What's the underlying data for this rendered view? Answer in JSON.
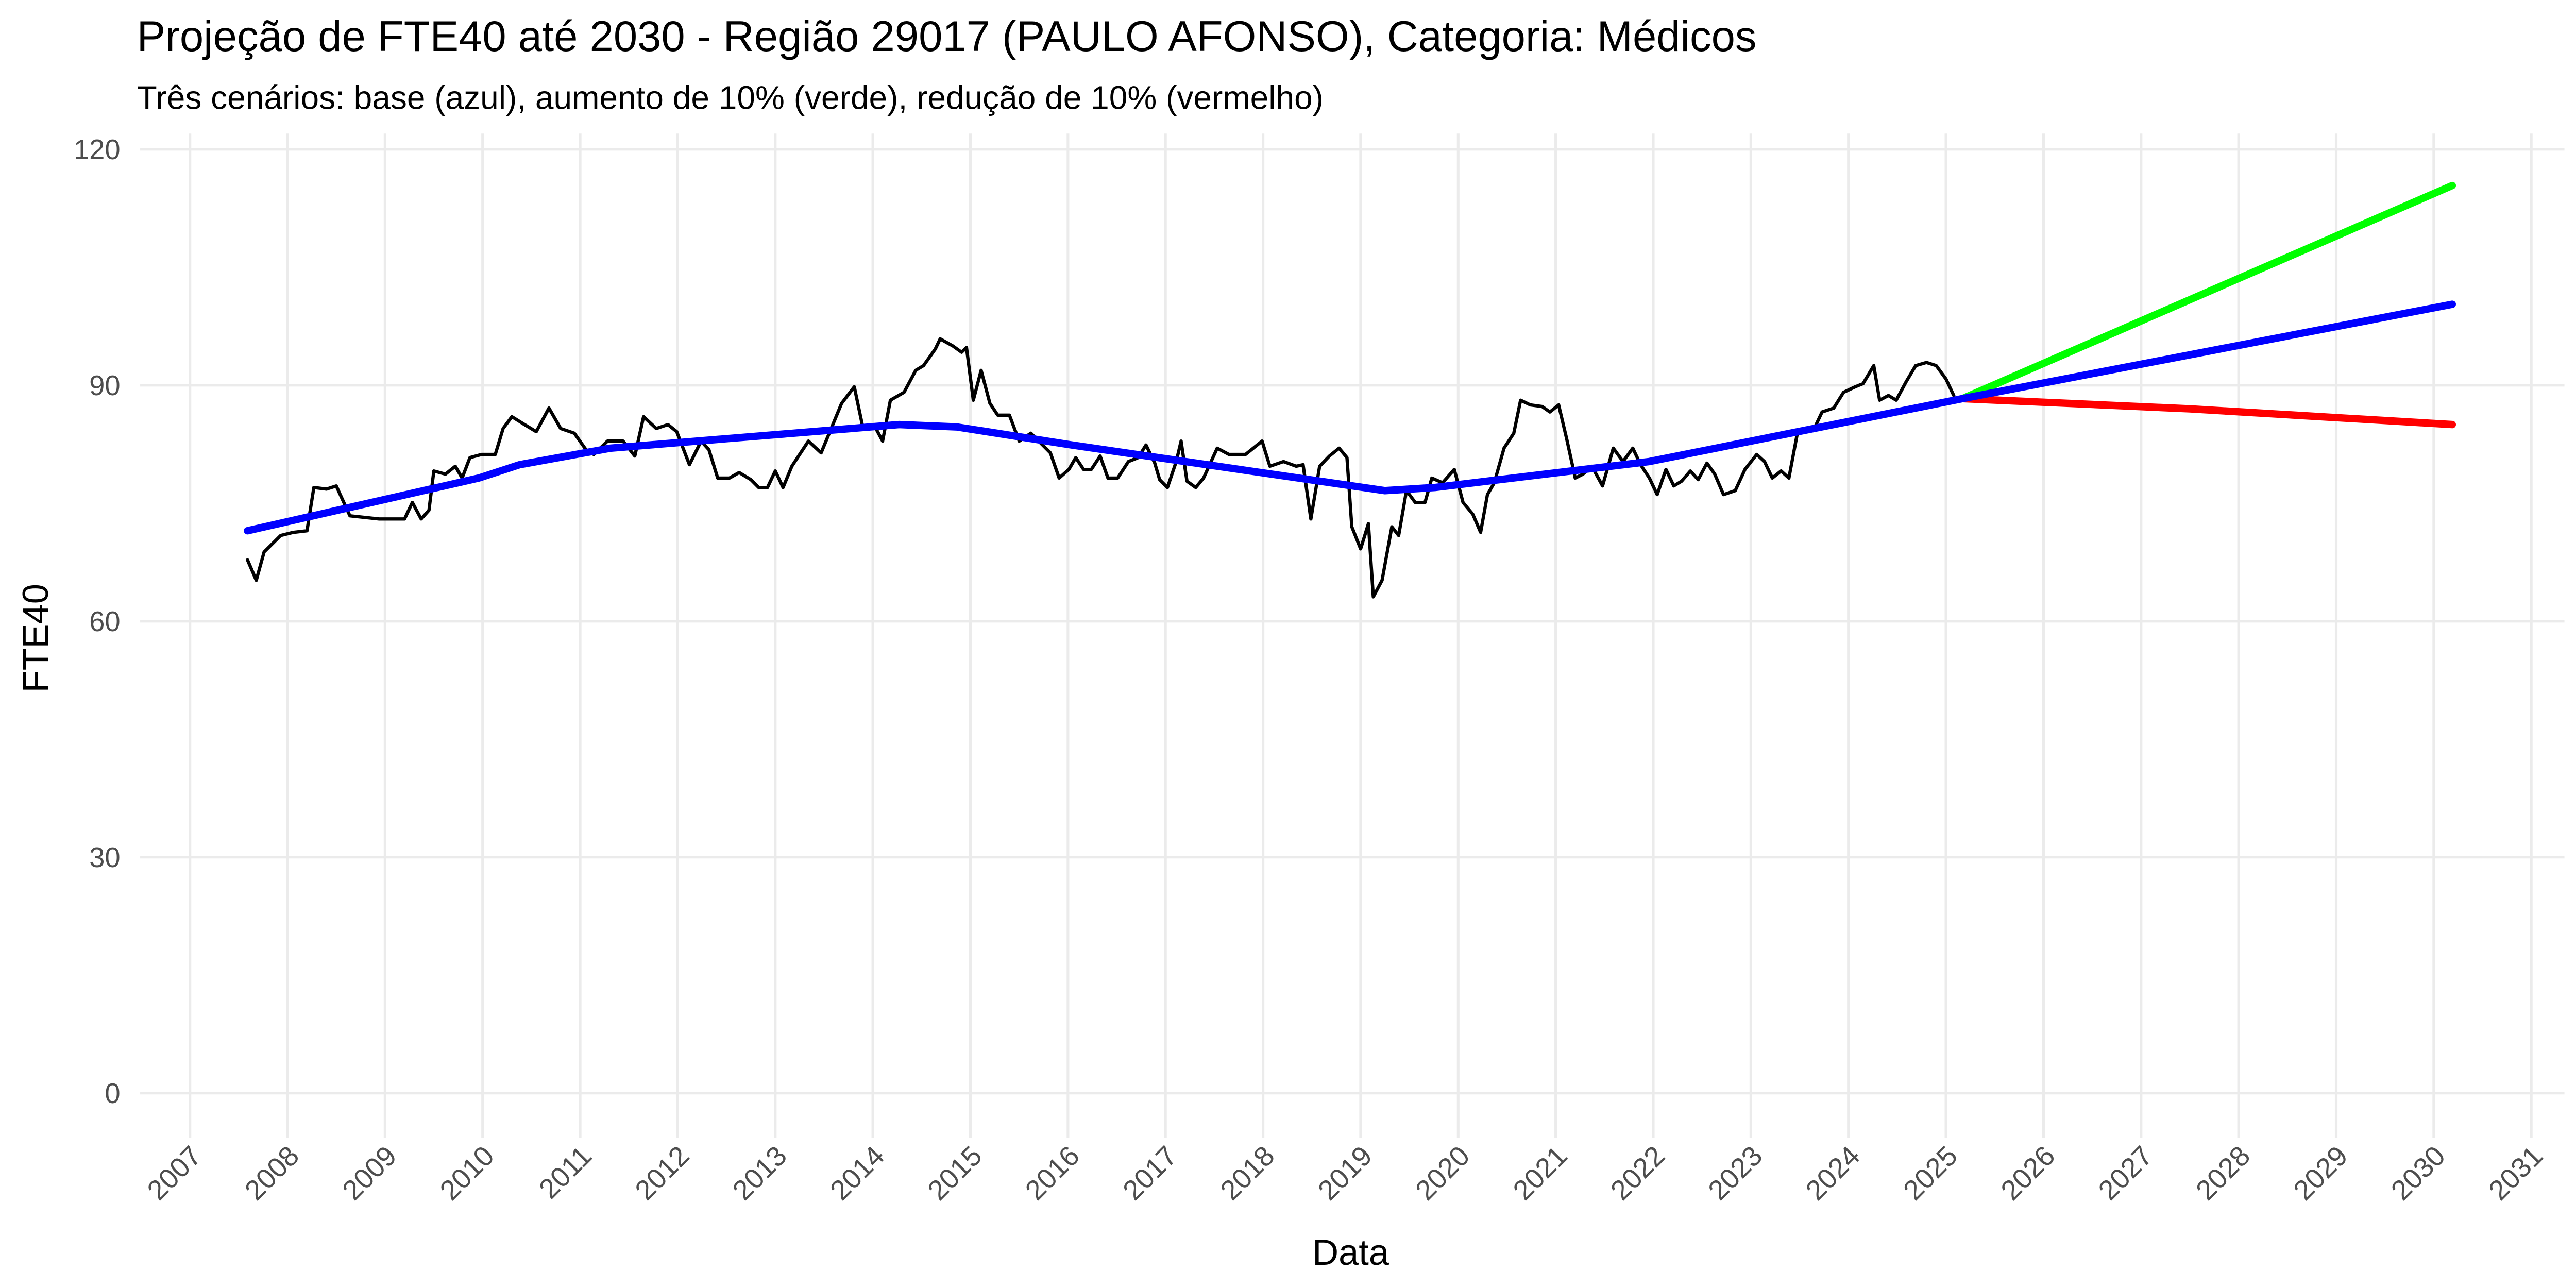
{
  "chart_data": {
    "type": "line",
    "title": "Projeção de FTE40 até 2030 - Região 29017 (PAULO AFONSO), Categoria: Médicos",
    "subtitle": "Três cenários: base (azul), aumento de 10% (verde), redução de 10% (vermelho)",
    "x_label": "Data",
    "y_label": "FTE40",
    "xlim": [
      2006.49,
      2031.34
    ],
    "xticks": [
      2007,
      2008,
      2009,
      2010,
      2011,
      2012,
      2013,
      2014,
      2015,
      2016,
      2017,
      2018,
      2019,
      2020,
      2021,
      2022,
      2023,
      2024,
      2025,
      2026,
      2027,
      2028,
      2029,
      2030,
      2031
    ],
    "ylim": [
      -5.7,
      122
    ],
    "yticks": [
      0,
      30,
      60,
      90,
      120
    ],
    "grid": true,
    "series": [
      {
        "color": "#000000",
        "x": [
          2007.59,
          2007.68,
          2007.76,
          2007.93,
          2008.06,
          2008.2,
          2008.27,
          2008.4,
          2008.5,
          2008.64,
          2008.94,
          2009.2,
          2009.28,
          2009.37,
          2009.45,
          2009.5,
          2009.62,
          2009.72,
          2009.79,
          2009.87,
          2009.99,
          2010.13,
          2010.21,
          2010.3,
          2010.43,
          2010.55,
          2010.68,
          2010.8,
          2010.94,
          2011.06,
          2011.14,
          2011.28,
          2011.44,
          2011.56,
          2011.65,
          2011.78,
          2011.9,
          2011.99,
          2012.12,
          2012.24,
          2012.32,
          2012.41,
          2012.53,
          2012.63,
          2012.75,
          2012.83,
          2012.92,
          2013.0,
          2013.08,
          2013.17,
          2013.34,
          2013.47,
          2013.59,
          2013.68,
          2013.81,
          2013.9,
          2014.01,
          2014.1,
          2014.18,
          2014.32,
          2014.44,
          2014.52,
          2014.64,
          2014.69,
          2014.82,
          2014.91,
          2014.96,
          2015.03,
          2015.11,
          2015.2,
          2015.28,
          2015.4,
          2015.5,
          2015.62,
          2015.74,
          2015.82,
          2015.91,
          2016.01,
          2016.08,
          2016.16,
          2016.24,
          2016.33,
          2016.41,
          2016.51,
          2016.62,
          2016.72,
          2016.8,
          2016.89,
          2016.94,
          2017.02,
          2017.11,
          2017.16,
          2017.22,
          2017.31,
          2017.39,
          2017.53,
          2017.65,
          2017.82,
          2017.99,
          2018.07,
          2018.21,
          2018.34,
          2018.41,
          2018.49,
          2018.58,
          2018.68,
          2018.78,
          2018.86,
          2018.91,
          2019.0,
          2019.08,
          2019.13,
          2019.22,
          2019.32,
          2019.39,
          2019.47,
          2019.56,
          2019.66,
          2019.73,
          2019.84,
          2019.96,
          2020.05,
          2020.15,
          2020.23,
          2020.3,
          2020.37,
          2020.47,
          2020.57,
          2020.64,
          2020.74,
          2020.86,
          2020.94,
          2021.03,
          2021.11,
          2021.2,
          2021.28,
          2021.37,
          2021.48,
          2021.59,
          2021.69,
          2021.79,
          2021.87,
          2021.96,
          2022.04,
          2022.13,
          2022.21,
          2022.29,
          2022.38,
          2022.46,
          2022.55,
          2022.63,
          2022.72,
          2022.84,
          2022.94,
          2023.06,
          2023.14,
          2023.22,
          2023.31,
          2023.39,
          2023.48,
          2023.56,
          2023.65,
          2023.73,
          2023.85,
          2023.95,
          2024.07,
          2024.15,
          2024.26,
          2024.32,
          2024.41,
          2024.49,
          2024.59,
          2024.69,
          2024.8,
          2024.9,
          2025.0,
          2025.08
        ],
        "values": [
          67.8,
          65.2,
          68.8,
          70.9,
          71.3,
          71.5,
          77.0,
          76.8,
          77.2,
          73.4,
          73.0,
          73.0,
          75.1,
          73.0,
          74.1,
          79.1,
          78.7,
          79.7,
          78.2,
          80.8,
          81.2,
          81.2,
          84.5,
          86.0,
          85.0,
          84.1,
          87.1,
          84.5,
          83.9,
          81.8,
          81.2,
          82.9,
          82.9,
          81.0,
          86.0,
          84.5,
          85.0,
          84.1,
          79.9,
          82.9,
          81.8,
          78.2,
          78.2,
          78.9,
          78.0,
          77.0,
          77.0,
          79.1,
          77.0,
          79.7,
          82.9,
          81.4,
          85.0,
          87.7,
          89.8,
          84.5,
          85.0,
          82.9,
          88.1,
          89.1,
          91.9,
          92.5,
          94.6,
          95.9,
          95.0,
          94.2,
          94.8,
          88.1,
          91.9,
          87.7,
          86.2,
          86.2,
          82.9,
          83.9,
          82.4,
          81.4,
          78.2,
          79.3,
          80.8,
          79.3,
          79.3,
          81.0,
          78.2,
          78.2,
          80.3,
          80.8,
          82.4,
          80.1,
          78.0,
          77.0,
          80.3,
          82.9,
          77.8,
          77.0,
          78.2,
          82.0,
          81.2,
          81.2,
          82.9,
          79.7,
          80.3,
          79.7,
          79.9,
          73.0,
          79.7,
          81.0,
          82.0,
          80.8,
          72.0,
          69.2,
          72.4,
          63.1,
          65.2,
          72.0,
          70.9,
          76.6,
          75.1,
          75.1,
          78.2,
          77.6,
          79.3,
          75.1,
          73.6,
          71.3,
          76.1,
          77.6,
          82.0,
          83.9,
          88.1,
          87.5,
          87.3,
          86.6,
          87.5,
          83.3,
          78.2,
          78.7,
          79.7,
          77.2,
          82.0,
          80.3,
          82.0,
          79.9,
          78.2,
          76.1,
          79.3,
          77.2,
          77.8,
          79.1,
          78.0,
          80.1,
          78.7,
          76.1,
          76.6,
          79.3,
          81.2,
          80.3,
          78.2,
          79.1,
          78.2,
          84.1,
          84.5,
          84.5,
          86.6,
          87.1,
          89.1,
          89.8,
          90.2,
          92.5,
          88.1,
          88.7,
          88.1,
          90.4,
          92.5,
          92.9,
          92.5,
          90.8,
          88.7
        ]
      },
      {
        "color": "#00ff00",
        "x": [
          2025.17,
          2030.19
        ],
        "values": [
          88.3,
          115.4
        ]
      },
      {
        "color": "#ff0000",
        "x": [
          2025.17,
          2027.5,
          2030.19
        ],
        "values": [
          88.3,
          87.0,
          85.0
        ]
      },
      {
        "color": "#0000ff",
        "x": [
          2007.59,
          2009.96,
          2010.38,
          2011.31,
          2014.27,
          2014.86,
          2016.04,
          2019.25,
          2019.76,
          2021.96,
          2025.17,
          2030.19
        ],
        "values": [
          71.5,
          78.2,
          79.9,
          82.0,
          85.0,
          84.7,
          82.4,
          76.6,
          77.0,
          80.3,
          88.3,
          100.3
        ]
      }
    ]
  }
}
